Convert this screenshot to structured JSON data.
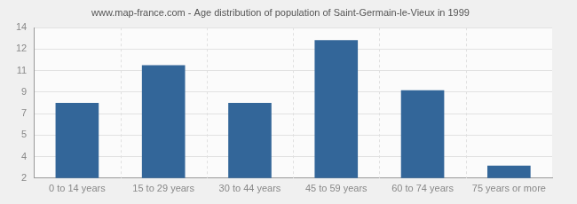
{
  "chart_data": {
    "type": "bar",
    "title": "www.map-france.com - Age distribution of population of Saint-Germain-le-Vieux in 1999",
    "categories": [
      "0 to 14 years",
      "15 to 29 years",
      "30 to 44 years",
      "45 to 59 years",
      "60 to 74 years",
      "75 years or more"
    ],
    "values": [
      8,
      11,
      8,
      13,
      9,
      3
    ],
    "color": "#336699",
    "ylim": [
      2,
      14
    ],
    "yticks": [
      2,
      {
        "value": 3.71,
        "label": "4"
      },
      {
        "value": 5.43,
        "label": "5"
      },
      {
        "value": 7.14,
        "label": "7"
      },
      {
        "value": 8.86,
        "label": "9"
      },
      {
        "value": 10.57,
        "label": "11"
      },
      {
        "value": 12.29,
        "label": "12"
      },
      14
    ],
    "grid": true
  }
}
